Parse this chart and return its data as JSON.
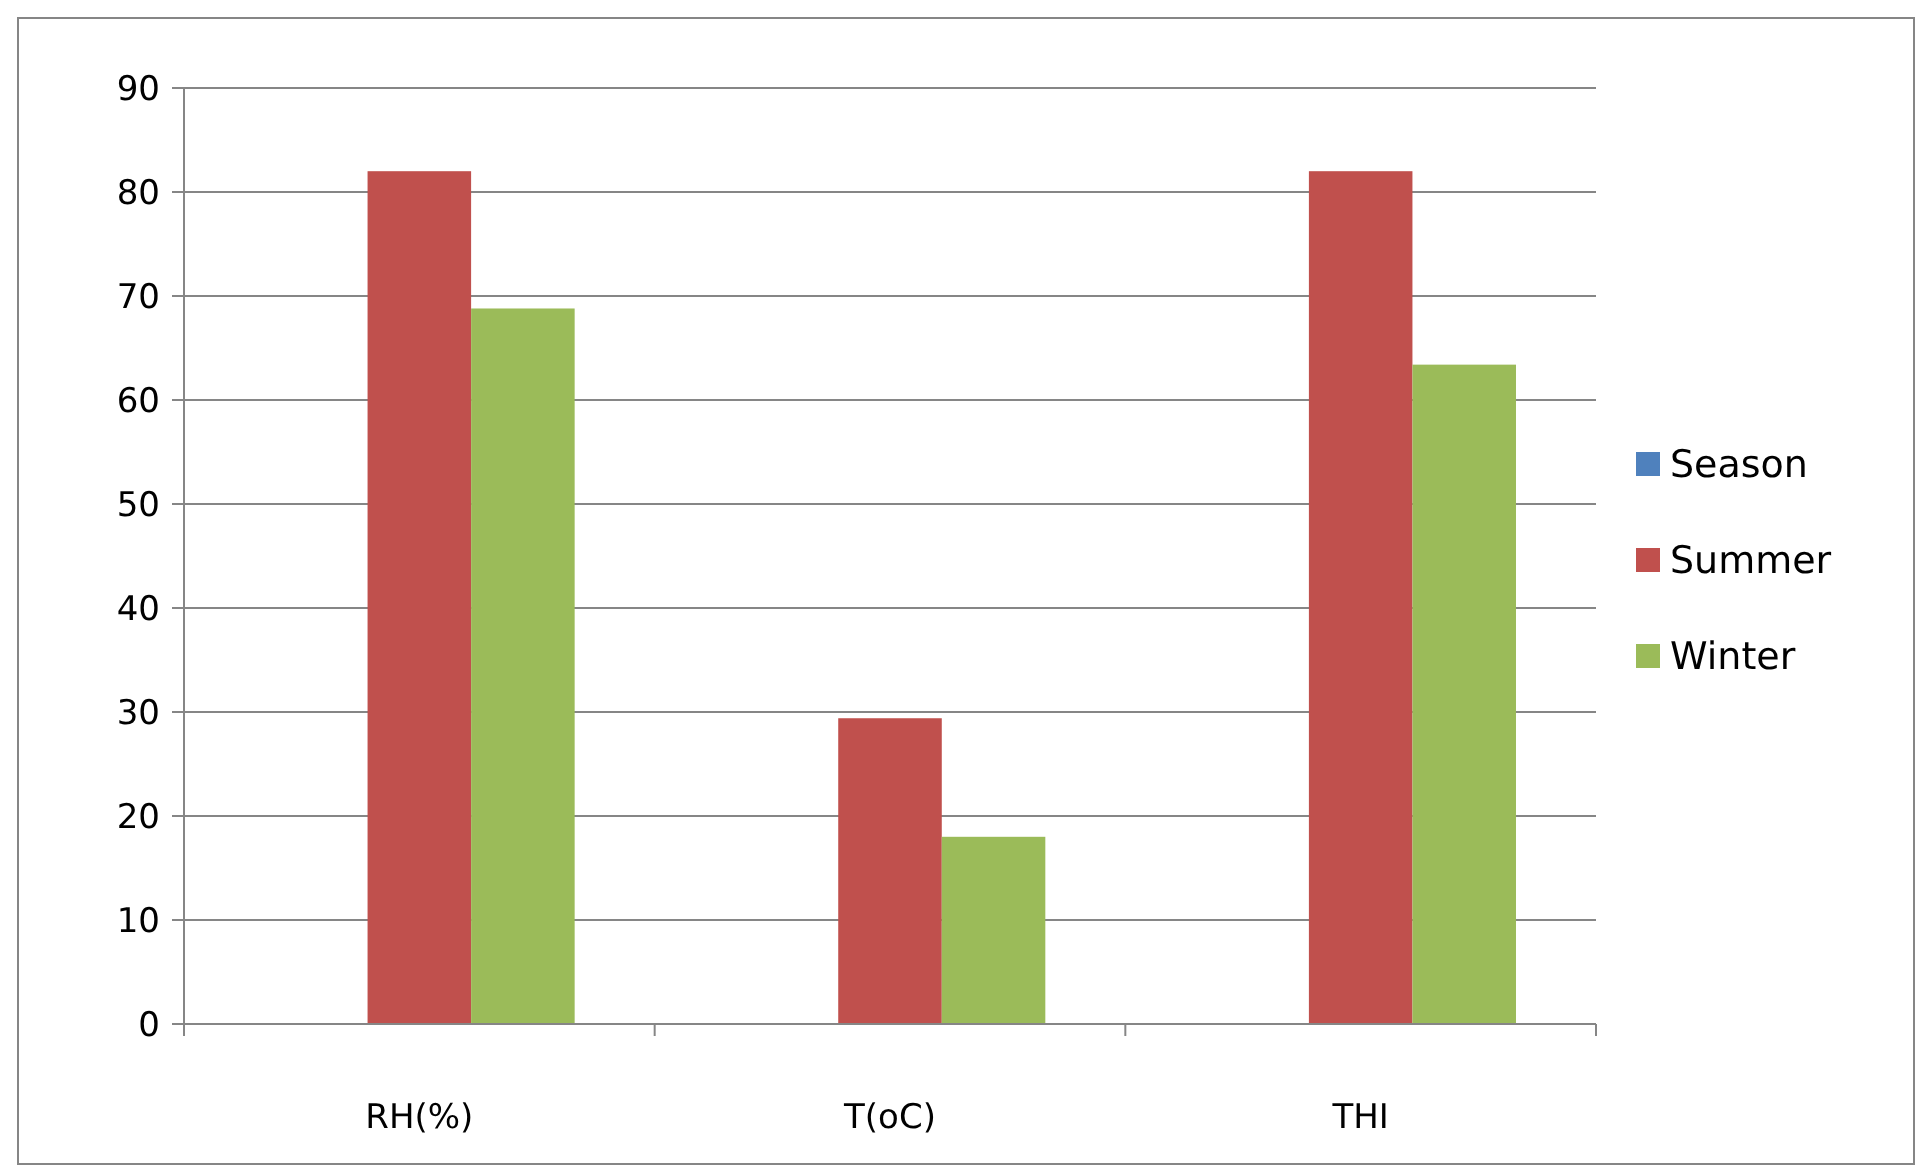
{
  "chart_data": {
    "type": "bar",
    "categories": [
      "RH(%)",
      "T(oC)",
      "THI"
    ],
    "series": [
      {
        "name": "Season",
        "color": "#4f81bd",
        "values": [
          null,
          null,
          null
        ]
      },
      {
        "name": "Summer",
        "color": "#c0504d",
        "values": [
          82,
          29.4,
          82
        ]
      },
      {
        "name": "Winter",
        "color": "#9bbb59",
        "values": [
          68.8,
          18,
          63.4
        ]
      }
    ],
    "ylim": [
      0,
      90
    ],
    "yticks": [
      0,
      10,
      20,
      30,
      40,
      50,
      60,
      70,
      80,
      90
    ],
    "grid": "y",
    "legend": "right"
  }
}
